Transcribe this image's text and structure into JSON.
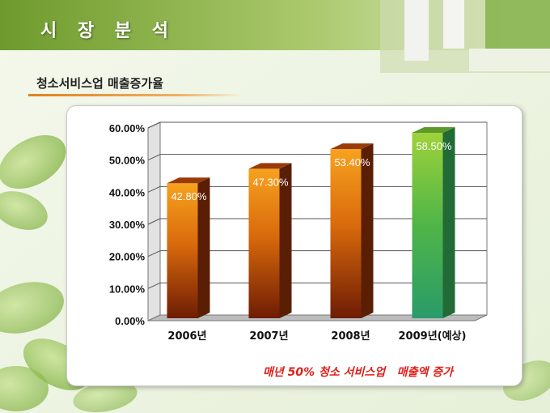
{
  "page": {
    "title": "시 장 분 석",
    "subtitle": "청소서비스업 매출증가율",
    "caption": "매년 50% 청소 서비스업   매출액 증가"
  },
  "colors": {
    "bar_orange": "#f39019",
    "bar_dark": "#7a2a05",
    "bar_green": "#8cc63f",
    "bar_green_dark": "#2f9a5a",
    "caption": "#e0201a"
  },
  "chart_data": {
    "type": "bar",
    "categories": [
      "2006년",
      "2007년",
      "2008년",
      "2009년(예상)"
    ],
    "values": [
      42.8,
      47.3,
      53.4,
      58.5
    ],
    "labels": [
      "42.80%",
      "47.30%",
      "53.40%",
      "58.50%"
    ],
    "ylim": [
      0,
      60
    ],
    "yticks": [
      "0.00%",
      "10.00%",
      "20.00%",
      "30.00%",
      "40.00%",
      "50.00%",
      "60.00%"
    ],
    "grid": true,
    "bar_styles": [
      "orange",
      "orange",
      "orange",
      "green"
    ]
  }
}
